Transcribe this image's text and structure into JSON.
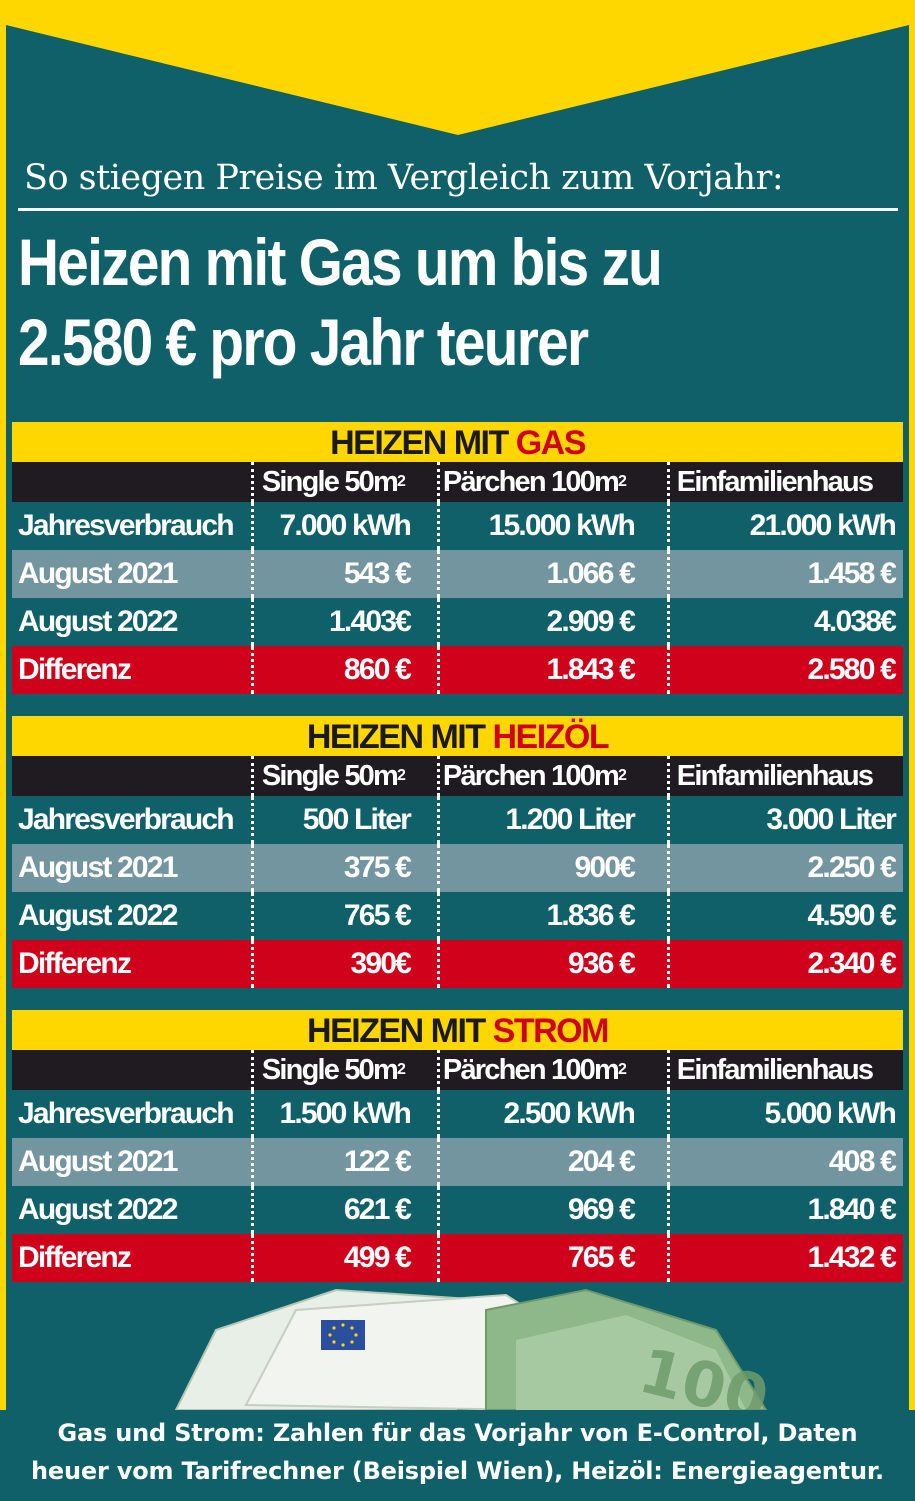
{
  "subtitle": "So stiegen Preise im Vergleich zum Vorjahr:",
  "headline": {
    "line1": "Heizen mit Gas um bis zu",
    "line2": "2.580 € pro Jahr teurer"
  },
  "columns": {
    "c1": "Single 50m",
    "c2": "Pärchen 100m",
    "c3": "Einfamilienhaus",
    "superscript": "2"
  },
  "sections": [
    {
      "title_prefix": "HEIZEN MIT",
      "title_fuel": "GAS",
      "rows": [
        {
          "label": "Jahresverbrauch",
          "values": [
            "7.000 kWh",
            "15.000 kWh",
            "21.000 kWh"
          ]
        },
        {
          "label": "August 2021",
          "values": [
            "543 €",
            "1.066 €",
            "1.458 €"
          ]
        },
        {
          "label": "August 2022",
          "values": [
            "1.403€",
            "2.909 €",
            "4.038€"
          ]
        },
        {
          "label": "Differenz",
          "values": [
            "860 €",
            "1.843 €",
            "2.580 €"
          ]
        }
      ]
    },
    {
      "title_prefix": "HEIZEN MIT",
      "title_fuel": "HEIZÖL",
      "rows": [
        {
          "label": "Jahresverbrauch",
          "values": [
            "500 Liter",
            "1.200 Liter",
            "3.000 Liter"
          ]
        },
        {
          "label": "August 2021",
          "values": [
            "375 €",
            "900€",
            "2.250 €"
          ]
        },
        {
          "label": "August 2022",
          "values": [
            "765 €",
            "1.836 €",
            "4.590 €"
          ]
        },
        {
          "label": "Differenz",
          "values": [
            "390€",
            "936 €",
            "2.340 €"
          ]
        }
      ]
    },
    {
      "title_prefix": "HEIZEN MIT",
      "title_fuel": "STROM",
      "rows": [
        {
          "label": "Jahresverbrauch",
          "values": [
            "1.500 kWh",
            "2.500 kWh",
            "5.000 kWh"
          ]
        },
        {
          "label": "August 2021",
          "values": [
            "122 €",
            "204 €",
            "408 €"
          ]
        },
        {
          "label": "August 2022",
          "values": [
            "621 €",
            "969 €",
            "1.840 €"
          ]
        },
        {
          "label": "Differenz",
          "values": [
            "499 €",
            "765 €",
            "1.432 €"
          ]
        }
      ]
    }
  ],
  "banknote_text": "100",
  "footer": {
    "line1": "Gas und Strom: Zahlen für das Vorjahr von E-Control, Daten",
    "line2": "heuer vom Tarifrechner (Beispiel Wien), Heizöl: Energieagentur."
  },
  "colors": {
    "teal": "#0f6069",
    "yellow": "#ffd700",
    "red": "#d0021b",
    "dark": "#1f1b20",
    "grey": "#7395a0"
  }
}
